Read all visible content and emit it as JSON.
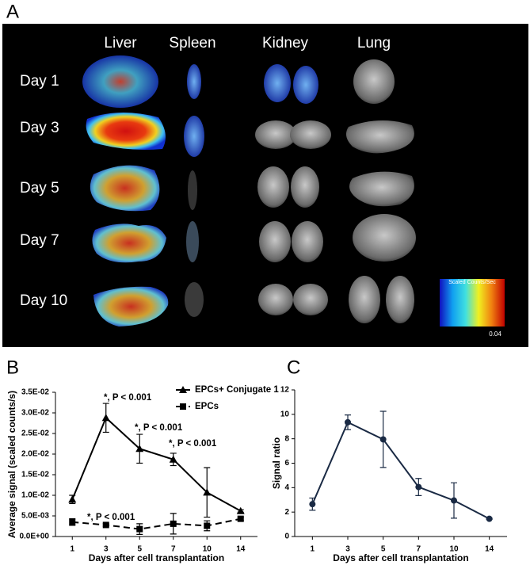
{
  "panel_a": {
    "label": "A",
    "columns": [
      "Liver",
      "Spleen",
      "Kidney",
      "Lung"
    ],
    "rows": [
      "Day 1",
      "Day 3",
      "Day 5",
      "Day 7",
      "Day 10"
    ],
    "colorbar": {
      "title": "Scaled Counts/Sec",
      "max_label": "0.04"
    }
  },
  "chart_data": [
    {
      "type": "line",
      "label": "B",
      "x_label": "Days after cell transplantation",
      "y_label": "Average signal (scaled counts/s)",
      "categories": [
        "1",
        "3",
        "5",
        "7",
        "10",
        "14"
      ],
      "ylim": [
        0,
        0.035
      ],
      "yticks": [
        {
          "value": 0,
          "label": "0.0E+00"
        },
        {
          "value": 0.005,
          "label": "5.0E-03"
        },
        {
          "value": 0.01,
          "label": "1.0E-02"
        },
        {
          "value": 0.015,
          "label": "1.5E-02"
        },
        {
          "value": 0.02,
          "label": "2.0E-02"
        },
        {
          "value": 0.025,
          "label": "2.5E-02"
        },
        {
          "value": 0.03,
          "label": "3.0E-02"
        },
        {
          "value": 0.035,
          "label": "3.5E-02"
        }
      ],
      "legend": "upper right",
      "series": [
        {
          "name": "EPCs+ Conjugate 1",
          "color": "#000000",
          "marker": "triangle",
          "dashed": false,
          "values": [
            0.009,
            0.0288,
            0.0213,
            0.0187,
            0.0107,
            0.0062
          ],
          "errors": [
            0.001,
            0.0035,
            0.0035,
            0.0015,
            0.006,
            0.0003
          ]
        },
        {
          "name": "EPCs",
          "color": "#000000",
          "marker": "square",
          "dashed": true,
          "values": [
            0.0035,
            0.0028,
            0.0018,
            0.0031,
            0.0026,
            0.0043
          ],
          "errors": [
            0.0008,
            0.0003,
            0.0013,
            0.0025,
            0.0012,
            0.0004
          ]
        }
      ],
      "annotations": [
        "*, P < 0.001",
        "*, P < 0.001",
        "*, P < 0.001",
        "*, P < 0.001"
      ]
    },
    {
      "type": "line",
      "label": "C",
      "x_label": "Days after cell transplantation",
      "y_label": "Signal ratio",
      "categories": [
        "1",
        "3",
        "5",
        "7",
        "10",
        "14"
      ],
      "ylim": [
        0,
        12
      ],
      "yticks": [
        0,
        2,
        4,
        6,
        8,
        10,
        12
      ],
      "series": [
        {
          "color": "#1a2a44",
          "marker": "circle",
          "dashed": false,
          "values": [
            2.65,
            9.35,
            7.95,
            4.05,
            2.95,
            1.45
          ],
          "errors": [
            0.5,
            0.6,
            2.3,
            0.7,
            1.45,
            0.05
          ]
        }
      ]
    }
  ]
}
